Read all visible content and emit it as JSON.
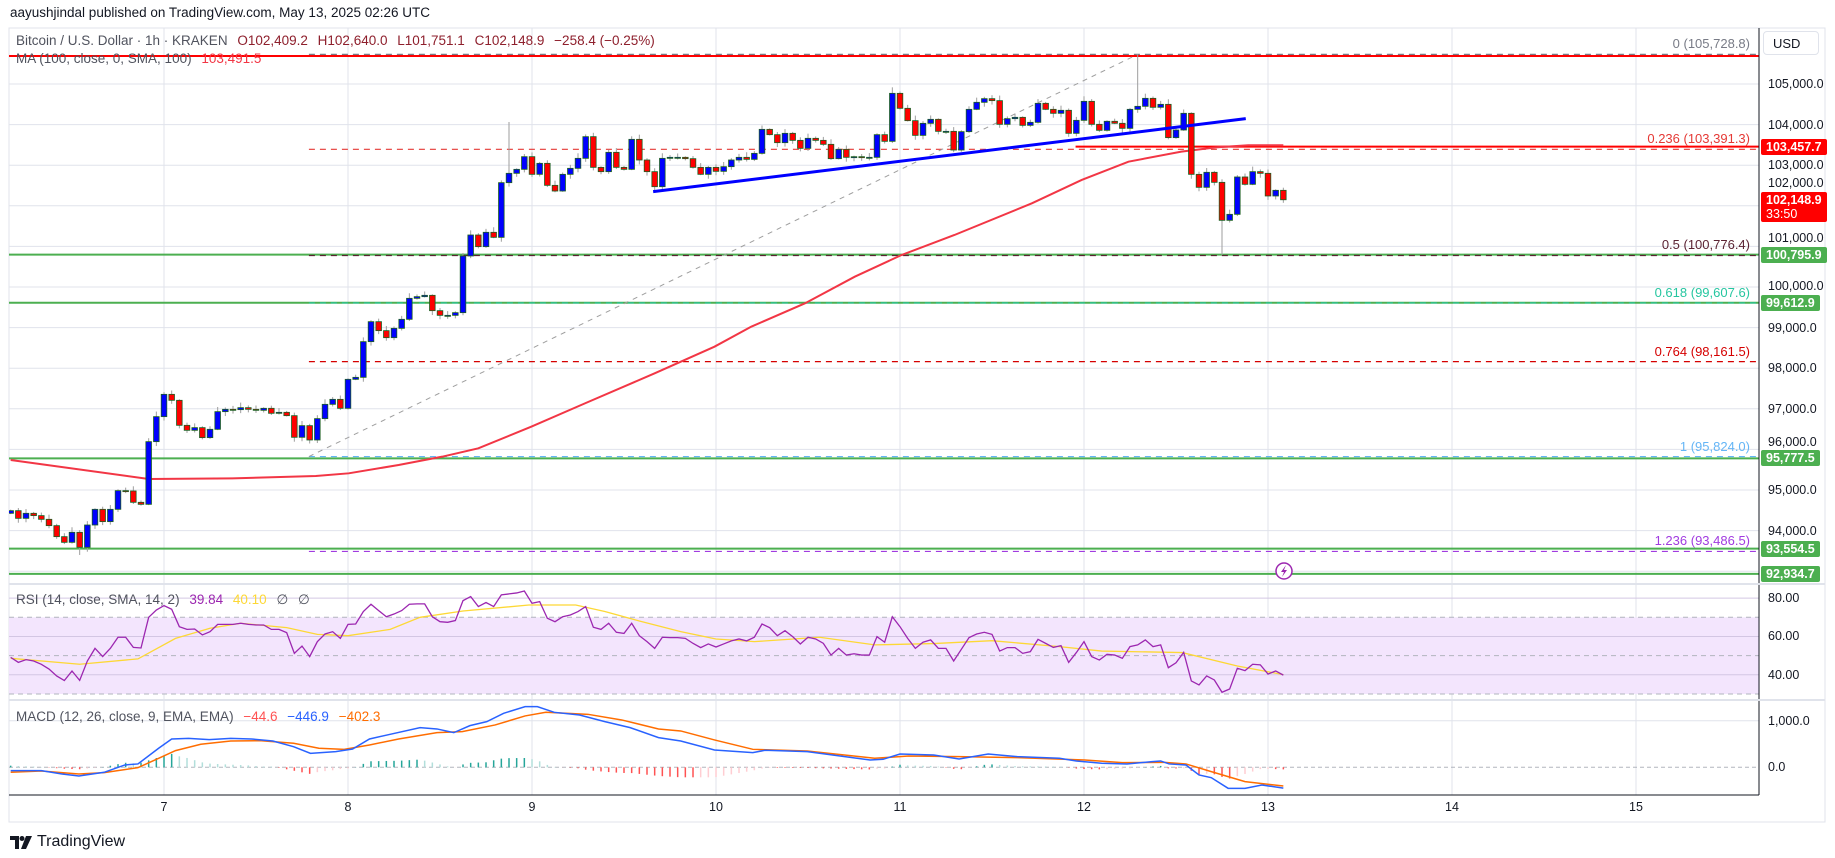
{
  "header": {
    "published": "aayushjindal published on TradingView.com, May 13, 2025 02:26 UTC"
  },
  "legend": {
    "symbol": "Bitcoin / U.S. Dollar · 1h · KRAKEN",
    "open": "O102,409.2",
    "high": "H102,640.0",
    "low": "L101,751.1",
    "close": "C102,148.9",
    "change": "−258.4 (−0.25%)",
    "ma_label": "MA (100, close, 0, SMA, 100)",
    "ma_value": "103,491.5",
    "rsi_label": "RSI (14, close, SMA, 14, 2)",
    "rsi_value": "39.84",
    "rsi_sma_value": "40.10",
    "rsi_extra1": "∅",
    "rsi_extra2": "∅",
    "macd_label": "MACD (12, 26, close, 9, EMA, EMA)",
    "macd_hist_value": "−44.6",
    "macd_value": "−446.9",
    "macd_signal_value": "−402.3"
  },
  "currency_button": "USD",
  "footer": {
    "logo_text": "TradingView"
  },
  "colors": {
    "candle_up": "#0000ff",
    "candle_down": "#ff0000",
    "candle_border": "#1b5e20",
    "wick": "#9e9e9e",
    "ma": "#f23645",
    "trendline": "#0000ff",
    "support": "#4caf50",
    "resistance": "#ff0000",
    "rsi": "#9c27b0",
    "rsi_sma": "#fdd835",
    "rsi_band": "#f3e5fd",
    "macd": "#2962ff",
    "signal": "#ff6d00",
    "hist_up_strong": "#26a69a",
    "hist_up_weak": "#b2dfdb",
    "hist_down_strong": "#ff5252",
    "hist_down_weak": "#ffcdd2",
    "grid": "#e0e3eb"
  },
  "chart_data": {
    "type": "candlestick",
    "title": "Bitcoin / U.S. Dollar · 1h · KRAKEN",
    "interval_hours": 1,
    "start_day": 6.1667,
    "closes": [
      94491,
      94302,
      94426,
      94369,
      94278,
      94122,
      93851,
      93711,
      93958,
      93588,
      94138,
      94524,
      94221,
      94524,
      94984,
      94976,
      94697,
      94647,
      96191,
      96807,
      97356,
      97209,
      96593,
      96470,
      96536,
      96290,
      96495,
      96930,
      96987,
      96979,
      97028,
      96987,
      96963,
      97012,
      96889,
      96913,
      96831,
      96298,
      96585,
      96232,
      96758,
      97110,
      97233,
      97012,
      97726,
      97775,
      98654,
      99146,
      98925,
      98752,
      98982,
      99204,
      99721,
      99762,
      99795,
      99417,
      99302,
      99302,
      99368,
      100764,
      101281,
      100994,
      101347,
      101223,
      102570,
      102800,
      102898,
      103210,
      102775,
      103046,
      102504,
      102364,
      102775,
      102923,
      103169,
      103703,
      102947,
      102841,
      103317,
      102947,
      102898,
      103637,
      103128,
      102841,
      102471,
      103169,
      103194,
      103194,
      103161,
      102947,
      102775,
      102947,
      102849,
      102964,
      103128,
      103194,
      103144,
      103292,
      103883,
      103752,
      103555,
      103785,
      103612,
      103415,
      103662,
      103612,
      103514,
      103161,
      103391,
      103194,
      103210,
      103194,
      103194,
      103752,
      103588,
      104770,
      104401,
      104097,
      103735,
      104031,
      104130,
      103834,
      103834,
      103374,
      103826,
      104376,
      104549,
      104639,
      104590,
      104007,
      104146,
      104179,
      103982,
      104056,
      104524,
      104376,
      104278,
      104352,
      103785,
      104105,
      104573,
      104007,
      103859,
      104081,
      104032,
      103908,
      104376,
      104450,
      104647,
      104426,
      104499,
      103679,
      103867,
      104278,
      102775,
      102455,
      102825,
      102578,
      101642,
      101790,
      102710,
      102529,
      102841,
      102800,
      102242,
      102381,
      102148.9
    ],
    "first_open": 94426,
    "notable_wicks": [
      {
        "index": 9,
        "low": 93400
      },
      {
        "index": 65,
        "high": 104064
      },
      {
        "index": 115,
        "high": 104918
      },
      {
        "index": 147,
        "high": 105728.8
      },
      {
        "index": 158,
        "low": 100789
      }
    ],
    "ma100": [
      [
        0,
        95739
      ],
      [
        18,
        95271
      ],
      [
        28.9,
        95287
      ],
      [
        39.8,
        95345
      ],
      [
        44.1,
        95411
      ],
      [
        50.6,
        95616
      ],
      [
        56.3,
        95821
      ],
      [
        61,
        96026
      ],
      [
        67.9,
        96560
      ],
      [
        74.9,
        97134
      ],
      [
        84,
        97874
      ],
      [
        91.8,
        98530
      ],
      [
        96.6,
        99023
      ],
      [
        103.6,
        99598
      ],
      [
        110.1,
        100254
      ],
      [
        116.2,
        100788
      ],
      [
        123.1,
        101281
      ],
      [
        133.2,
        102061
      ],
      [
        139.7,
        102636
      ],
      [
        145.8,
        103087
      ],
      [
        152.7,
        103334
      ],
      [
        157.2,
        103440
      ],
      [
        161.4,
        103490
      ],
      [
        166,
        103491.5
      ]
    ],
    "trendline": [
      [
        83.8,
        102348
      ],
      [
        161.1,
        104146
      ]
    ],
    "fib_anchor": [
      [
        38.9,
        95824
      ],
      [
        147,
        105728.8
      ]
    ],
    "fib_levels": [
      {
        "label": "0 (105,728.8)",
        "value": 105728.8,
        "color": "#787b86"
      },
      {
        "label": "0.236 (103,391.3)",
        "value": 103391.3,
        "color": "#e53935"
      },
      {
        "label": "0.5 (100,776.4)",
        "value": 100776.4,
        "color": "#5b2333"
      },
      {
        "label": "0.618 (99,607.6)",
        "value": 99607.6,
        "color": "#26c6a0"
      },
      {
        "label": "0.764 (98,161.5)",
        "value": 98161.5,
        "color": "#d50000"
      },
      {
        "label": "1 (95,824.0)",
        "value": 95824.0,
        "color": "#64b5f6"
      },
      {
        "label": "1.236 (93,486.5)",
        "value": 93486.5,
        "color": "#a13be0"
      }
    ],
    "horizontal_lines": [
      {
        "value": 105690,
        "color": "#ff0000",
        "from_index": null
      },
      {
        "value": 103457.7,
        "color": "#ff0000",
        "from_index": 138.9
      },
      {
        "value": 100795.9,
        "color": "#4caf50",
        "from_index": null
      },
      {
        "value": 99612.9,
        "color": "#4caf50",
        "from_index": null
      },
      {
        "value": 95777.5,
        "color": "#4caf50",
        "from_index": null
      },
      {
        "value": 93554.5,
        "color": "#4caf50",
        "from_index": null
      },
      {
        "value": 92934.7,
        "color": "#4caf50",
        "from_index": null
      }
    ],
    "price_axis": {
      "ticks": [
        {
          "value": 105000,
          "label": "105,000.0"
        },
        {
          "value": 104000,
          "label": "104,000.0"
        },
        {
          "value": 103000,
          "label": "103,000.0"
        },
        {
          "value": 102000,
          "label": "102,000.0"
        },
        {
          "value": 101000,
          "label": "101,000.0"
        },
        {
          "value": 100000,
          "label": "100,000.0"
        },
        {
          "value": 99000,
          "label": "99,000.0"
        },
        {
          "value": 98000,
          "label": "98,000.0"
        },
        {
          "value": 97000,
          "label": "97,000.0"
        },
        {
          "value": 96000,
          "label": "96,000.0"
        },
        {
          "value": 95000,
          "label": "95,000.0"
        },
        {
          "value": 94000,
          "label": "94,000.0"
        }
      ],
      "grid_values": [
        105000,
        104000,
        103000,
        102000,
        101000,
        100000,
        99000,
        98000,
        97000,
        96000,
        95000,
        94000,
        93000
      ],
      "badges": [
        {
          "value": 103457.7,
          "label": "103,457.7",
          "color": "#ff0000"
        },
        {
          "value": 102148.9,
          "label": "102,148.9",
          "sub": "33:50",
          "color": "#ff0000"
        },
        {
          "value": 100795.9,
          "label": "100,795.9",
          "color": "#4caf50"
        },
        {
          "value": 99612.9,
          "label": "99,612.9",
          "color": "#4caf50"
        },
        {
          "value": 95777.5,
          "label": "95,777.5",
          "color": "#4caf50"
        },
        {
          "value": 93554.5,
          "label": "93,554.5",
          "color": "#4caf50"
        },
        {
          "value": 92934.7,
          "label": "92,934.7",
          "color": "#4caf50"
        }
      ]
    },
    "time_axis": [
      {
        "day": 7,
        "label": "7"
      },
      {
        "day": 8,
        "label": "8"
      },
      {
        "day": 9,
        "label": "9"
      },
      {
        "day": 10,
        "label": "10"
      },
      {
        "day": 11,
        "label": "11"
      },
      {
        "day": 12,
        "label": "12"
      },
      {
        "day": 13,
        "label": "13"
      },
      {
        "day": 14,
        "label": "14"
      },
      {
        "day": 15,
        "label": "15"
      }
    ],
    "rsi": {
      "upper_band": 70,
      "middle": 50,
      "lower_band": 30,
      "ticks": [
        {
          "value": 80,
          "label": "80.00"
        },
        {
          "value": 60,
          "label": "60.00"
        },
        {
          "value": 40,
          "label": "40.00"
        }
      ],
      "values": [
        49.1,
        46.5,
        47.9,
        47.2,
        45.5,
        43.0,
        39.4,
        37.0,
        42.0,
        37.1,
        47.2,
        53.8,
        49.5,
        53.8,
        59.6,
        59.6,
        54.3,
        54.0,
        70.0,
        73.8,
        76.1,
        74.2,
        65.1,
        63.7,
        63.9,
        60.8,
        62.5,
        66.3,
        66.3,
        66.3,
        66.9,
        66.3,
        66.0,
        66.0,
        63.7,
        63.7,
        62.0,
        51.2,
        55.0,
        49.5,
        57.3,
        61.3,
        62.5,
        59.0,
        66.3,
        66.5,
        73.0,
        76.8,
        73.5,
        70.3,
        71.7,
        73.5,
        76.8,
        77.0,
        77.0,
        70.3,
        67.7,
        67.4,
        68.3,
        78.7,
        80.8,
        75.6,
        77.7,
        75.6,
        81.7,
        82.2,
        82.7,
        83.7,
        77.3,
        78.2,
        69.5,
        67.7,
        70.3,
        71.2,
        73.0,
        75.6,
        64.8,
        63.7,
        66.9,
        62.2,
        61.6,
        66.9,
        60.4,
        57.3,
        53.8,
        59.6,
        59.4,
        59.4,
        59.0,
        56.4,
        54.2,
        56.1,
        54.5,
        56.1,
        57.7,
        58.7,
        57.7,
        59.6,
        66.5,
        64.6,
        60.4,
        63.0,
        59.9,
        56.1,
        59.6,
        58.7,
        56.4,
        50.3,
        53.8,
        50.3,
        51.0,
        50.3,
        50.3,
        59.9,
        57.0,
        70.3,
        65.1,
        59.0,
        53.8,
        57.0,
        58.2,
        53.8,
        53.8,
        47.2,
        53.3,
        59.4,
        61.3,
        62.2,
        61.1,
        52.4,
        54.2,
        54.2,
        51.2,
        52.1,
        58.5,
        56.4,
        54.3,
        55.2,
        46.5,
        51.6,
        57.3,
        49.5,
        47.7,
        50.7,
        50.3,
        48.6,
        54.7,
        55.6,
        58.2,
        54.7,
        55.6,
        43.7,
        46.3,
        51.7,
        36.8,
        34.7,
        39.4,
        37.3,
        30.9,
        32.6,
        43.4,
        42.2,
        45.5,
        45.2,
        40.4,
        42.0,
        39.84
      ],
      "sma": [
        [
          0,
          48.6
        ],
        [
          9,
          45.5
        ],
        [
          16.6,
          48.3
        ],
        [
          21.5,
          59
        ],
        [
          26,
          64.3
        ],
        [
          30,
          66.9
        ],
        [
          36,
          64.6
        ],
        [
          40,
          61.1
        ],
        [
          44,
          60.4
        ],
        [
          49.5,
          63.7
        ],
        [
          53.4,
          70
        ],
        [
          59,
          73.3
        ],
        [
          67.6,
          76.4
        ],
        [
          73.7,
          76.4
        ],
        [
          77.5,
          73
        ],
        [
          82,
          68.1
        ],
        [
          87.4,
          62.5
        ],
        [
          92,
          58.7
        ],
        [
          97,
          57.3
        ],
        [
          105.5,
          59.6
        ],
        [
          112.7,
          55.6
        ],
        [
          120.4,
          56.3
        ],
        [
          128,
          57.8
        ],
        [
          136.8,
          54.7
        ],
        [
          142.3,
          52.4
        ],
        [
          152.8,
          51.6
        ],
        [
          160,
          44.6
        ],
        [
          166,
          40.1
        ]
      ]
    },
    "macd": {
      "ticks": [
        {
          "value": 1000,
          "label": "1,000.0"
        },
        {
          "value": 0,
          "label": "0.0"
        }
      ],
      "macd": [
        [
          0,
          -72
        ],
        [
          4,
          -72
        ],
        [
          6.7,
          -143
        ],
        [
          8.9,
          -186
        ],
        [
          12.2,
          -107
        ],
        [
          14.9,
          50
        ],
        [
          16.6,
          72
        ],
        [
          19.3,
          408
        ],
        [
          21,
          608
        ],
        [
          23.2,
          622
        ],
        [
          25.9,
          594
        ],
        [
          28.7,
          622
        ],
        [
          31.4,
          608
        ],
        [
          34.2,
          565
        ],
        [
          36.9,
          443
        ],
        [
          39.1,
          300
        ],
        [
          42.4,
          336
        ],
        [
          44.6,
          393
        ],
        [
          46.8,
          608
        ],
        [
          49.5,
          708
        ],
        [
          53.4,
          851
        ],
        [
          55.6,
          823
        ],
        [
          57.8,
          744
        ],
        [
          59.9,
          894
        ],
        [
          62.1,
          980
        ],
        [
          64.3,
          1159
        ],
        [
          67.1,
          1302
        ],
        [
          68.7,
          1302
        ],
        [
          70.9,
          1180
        ],
        [
          74.2,
          1123
        ],
        [
          77.5,
          980
        ],
        [
          80.8,
          851
        ],
        [
          84.5,
          637
        ],
        [
          87.4,
          565
        ],
        [
          91.8,
          372
        ],
        [
          96.8,
          315
        ],
        [
          98.4,
          365
        ],
        [
          103.9,
          336
        ],
        [
          112.1,
          157
        ],
        [
          113.8,
          172
        ],
        [
          116,
          286
        ],
        [
          120.4,
          265
        ],
        [
          123.7,
          179
        ],
        [
          127.5,
          286
        ],
        [
          131.3,
          229
        ],
        [
          136.8,
          193
        ],
        [
          139,
          136
        ],
        [
          142.3,
          86
        ],
        [
          145.6,
          72
        ],
        [
          148.9,
          122
        ],
        [
          150,
          136
        ],
        [
          151.1,
          72
        ],
        [
          153.3,
          50
        ],
        [
          155,
          -165
        ],
        [
          156.6,
          -222
        ],
        [
          158.8,
          -451
        ],
        [
          161,
          -451
        ],
        [
          163.2,
          -379
        ],
        [
          166,
          -446.9
        ]
      ],
      "signal": [
        [
          0,
          -107
        ],
        [
          4,
          -79
        ],
        [
          8.9,
          -143
        ],
        [
          12.2,
          -114
        ],
        [
          16.6,
          -7
        ],
        [
          19.3,
          193
        ],
        [
          21.5,
          358
        ],
        [
          24.8,
          494
        ],
        [
          28.7,
          565
        ],
        [
          32.5,
          572
        ],
        [
          36.9,
          515
        ],
        [
          40.2,
          408
        ],
        [
          43.5,
          386
        ],
        [
          46.8,
          479
        ],
        [
          50.6,
          608
        ],
        [
          55.6,
          744
        ],
        [
          58.9,
          765
        ],
        [
          63.2,
          909
        ],
        [
          67.1,
          1102
        ],
        [
          69.8,
          1180
        ],
        [
          75.3,
          1137
        ],
        [
          79.7,
          1016
        ],
        [
          84.5,
          823
        ],
        [
          87.4,
          780
        ],
        [
          91.8,
          587
        ],
        [
          96.8,
          386
        ],
        [
          103.9,
          351
        ],
        [
          112.7,
          193
        ],
        [
          117.1,
          243
        ],
        [
          123.7,
          229
        ],
        [
          131.3,
          207
        ],
        [
          140.1,
          157
        ],
        [
          145,
          100
        ],
        [
          150.5,
          107
        ],
        [
          153.3,
          72
        ],
        [
          156.6,
          -93
        ],
        [
          158.8,
          -200
        ],
        [
          161,
          -308
        ],
        [
          166,
          -402.3
        ]
      ]
    }
  }
}
